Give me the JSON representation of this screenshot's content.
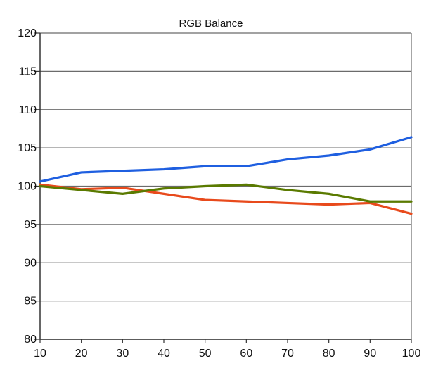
{
  "chart_data": {
    "type": "line",
    "title": "RGB Balance",
    "xlabel": "",
    "ylabel": "",
    "x": [
      10,
      20,
      30,
      40,
      50,
      60,
      70,
      80,
      90,
      100
    ],
    "xlim": [
      10,
      100
    ],
    "ylim": [
      80,
      120
    ],
    "xticks": [
      "10",
      "20",
      "30",
      "40",
      "50",
      "60",
      "70",
      "80",
      "90",
      "100"
    ],
    "yticks": [
      "80",
      "85",
      "90",
      "95",
      "100",
      "105",
      "110",
      "115",
      "120"
    ],
    "grid": "horizontal",
    "legend": "none",
    "series": [
      {
        "color": "#1f5fe0",
        "values": [
          100.6,
          101.8,
          102.0,
          102.2,
          102.6,
          102.6,
          103.5,
          104.0,
          104.8,
          106.4
        ]
      },
      {
        "color": "#e84a1c",
        "values": [
          100.2,
          99.6,
          99.8,
          99.0,
          98.2,
          98.0,
          97.8,
          97.6,
          97.8,
          96.4
        ]
      },
      {
        "color": "#5a7a00",
        "values": [
          100.0,
          99.5,
          99.0,
          99.7,
          100.0,
          100.2,
          99.5,
          99.0,
          98.0,
          98.0
        ]
      }
    ]
  }
}
